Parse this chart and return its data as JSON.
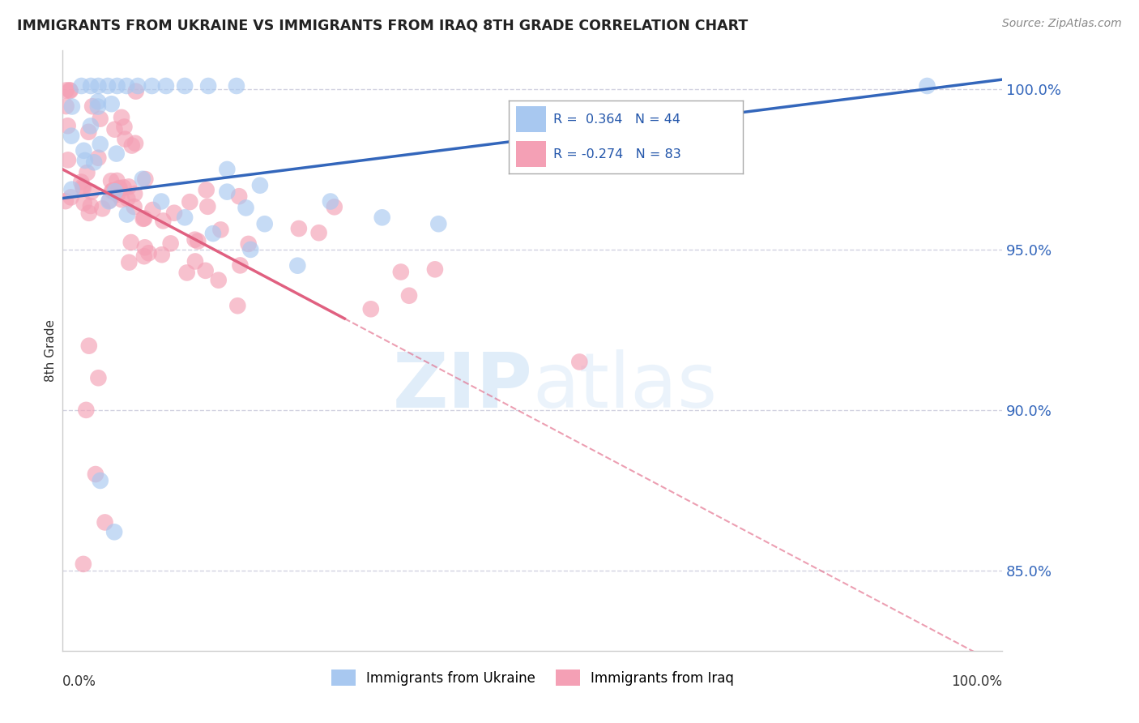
{
  "title": "IMMIGRANTS FROM UKRAINE VS IMMIGRANTS FROM IRAQ 8TH GRADE CORRELATION CHART",
  "source": "Source: ZipAtlas.com",
  "ylabel": "8th Grade",
  "xlim": [
    0.0,
    1.0
  ],
  "ylim": [
    0.825,
    1.012
  ],
  "yticks": [
    0.85,
    0.9,
    0.95,
    1.0
  ],
  "ytick_labels": [
    "85.0%",
    "90.0%",
    "95.0%",
    "100.0%"
  ],
  "legend_ukraine": "Immigrants from Ukraine",
  "legend_iraq": "Immigrants from Iraq",
  "R_ukraine": 0.364,
  "N_ukraine": 44,
  "R_iraq": -0.274,
  "N_iraq": 83,
  "ukraine_color": "#a8c8f0",
  "iraq_color": "#f4a0b5",
  "ukraine_line_color": "#3366bb",
  "iraq_line_color": "#e06080",
  "grid_color": "#ccccdd",
  "watermark_color": "#ddeeff"
}
